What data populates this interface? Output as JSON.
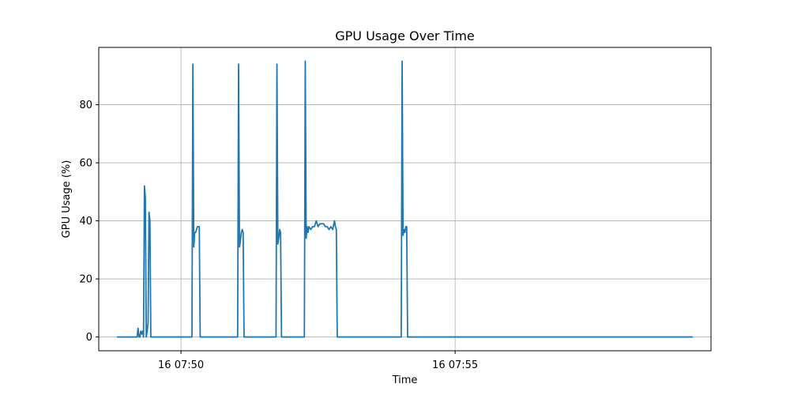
{
  "chart_data": {
    "type": "line",
    "title": "GPU Usage Over Time",
    "xlabel": "Time",
    "ylabel": "GPU Usage (%)",
    "x_ticks": [
      "16 07:50",
      "16 07:55"
    ],
    "y_ticks": [
      0,
      20,
      40,
      60,
      80
    ],
    "xlim": [
      "07:48:30",
      "07:59:40"
    ],
    "ylim": [
      -4.75,
      99.75
    ],
    "grid": true,
    "legend": "none",
    "series": [
      {
        "color": "#1f77b4",
        "x": [
          "07:48:50",
          "07:49:12",
          "07:49:13",
          "07:49:14",
          "07:49:15",
          "07:49:16",
          "07:49:17",
          "07:49:18",
          "07:49:19",
          "07:49:20",
          "07:49:21",
          "07:49:22",
          "07:49:23",
          "07:49:24",
          "07:49:25",
          "07:49:26",
          "07:49:27",
          "07:49:28",
          "07:49:29",
          "07:49:30",
          "07:49:31",
          "07:49:32",
          "07:49:33",
          "07:50:12",
          "07:50:13",
          "07:50:14",
          "07:50:15",
          "07:50:16",
          "07:50:18",
          "07:50:20",
          "07:50:21",
          "07:50:22",
          "07:51:02",
          "07:51:03",
          "07:51:04",
          "07:51:05",
          "07:51:06",
          "07:51:07",
          "07:51:08",
          "07:51:09",
          "07:51:44",
          "07:51:45",
          "07:51:46",
          "07:51:47",
          "07:51:48",
          "07:51:49",
          "07:51:50",
          "07:52:15",
          "07:52:16",
          "07:52:17",
          "07:52:18",
          "07:52:19",
          "07:52:20",
          "07:52:22",
          "07:52:24",
          "07:52:26",
          "07:52:28",
          "07:52:30",
          "07:52:32",
          "07:52:34",
          "07:52:36",
          "07:52:38",
          "07:52:40",
          "07:52:42",
          "07:52:44",
          "07:52:46",
          "07:52:48",
          "07:52:49",
          "07:52:50",
          "07:52:51",
          "07:54:01",
          "07:54:02",
          "07:54:03",
          "07:54:04",
          "07:54:05",
          "07:54:06",
          "07:54:07",
          "07:54:08",
          "07:59:20"
        ],
        "y": [
          0,
          0,
          3,
          0,
          0,
          2,
          1,
          2,
          0,
          52,
          48,
          0,
          2,
          5,
          43,
          40,
          0,
          0,
          0,
          0,
          0,
          0,
          0,
          0,
          94,
          31,
          36,
          36,
          38,
          38,
          0,
          0,
          0,
          94,
          31,
          33,
          36,
          37,
          36,
          0,
          0,
          94,
          32,
          34,
          37,
          36,
          0,
          0,
          95,
          34,
          38,
          36,
          38,
          37,
          38,
          38,
          40,
          38,
          39,
          39,
          39,
          38,
          38,
          37,
          38,
          37,
          40,
          38,
          37,
          0,
          0,
          95,
          35,
          37,
          36,
          38,
          38,
          0,
          0
        ]
      }
    ]
  }
}
